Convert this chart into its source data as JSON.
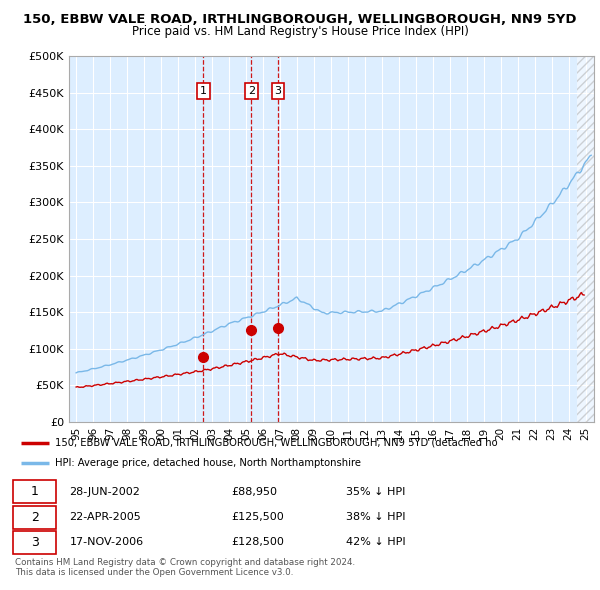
{
  "title": "150, EBBW VALE ROAD, IRTHLINGBOROUGH, WELLINGBOROUGH, NN9 5YD",
  "subtitle": "Price paid vs. HM Land Registry's House Price Index (HPI)",
  "legend_line1": "150, EBBW VALE ROAD, IRTHLINGBOROUGH, WELLINGBOROUGH, NN9 5YD (detached ho",
  "legend_line2": "HPI: Average price, detached house, North Northamptonshire",
  "footer1": "Contains HM Land Registry data © Crown copyright and database right 2024.",
  "footer2": "This data is licensed under the Open Government Licence v3.0.",
  "transactions": [
    {
      "num": 1,
      "date": "28-JUN-2002",
      "price": "£88,950",
      "hpi": "35% ↓ HPI"
    },
    {
      "num": 2,
      "date": "22-APR-2005",
      "price": "£125,500",
      "hpi": "38% ↓ HPI"
    },
    {
      "num": 3,
      "date": "17-NOV-2006",
      "price": "£128,500",
      "hpi": "42% ↓ HPI"
    }
  ],
  "transaction_years": [
    2002.5,
    2005.31,
    2006.88
  ],
  "transaction_prices": [
    88950,
    125500,
    128500
  ],
  "hpi_color": "#7ab8e8",
  "price_color": "#cc0000",
  "vline_color": "#cc0000",
  "background_color": "#ffffff",
  "plot_bg_color": "#ddeeff",
  "grid_color": "#ffffff",
  "ylim": [
    0,
    500000
  ],
  "yticks": [
    0,
    50000,
    100000,
    150000,
    200000,
    250000,
    300000,
    350000,
    400000,
    450000,
    500000
  ],
  "xlim_start": 1994.58,
  "xlim_end": 2025.5
}
